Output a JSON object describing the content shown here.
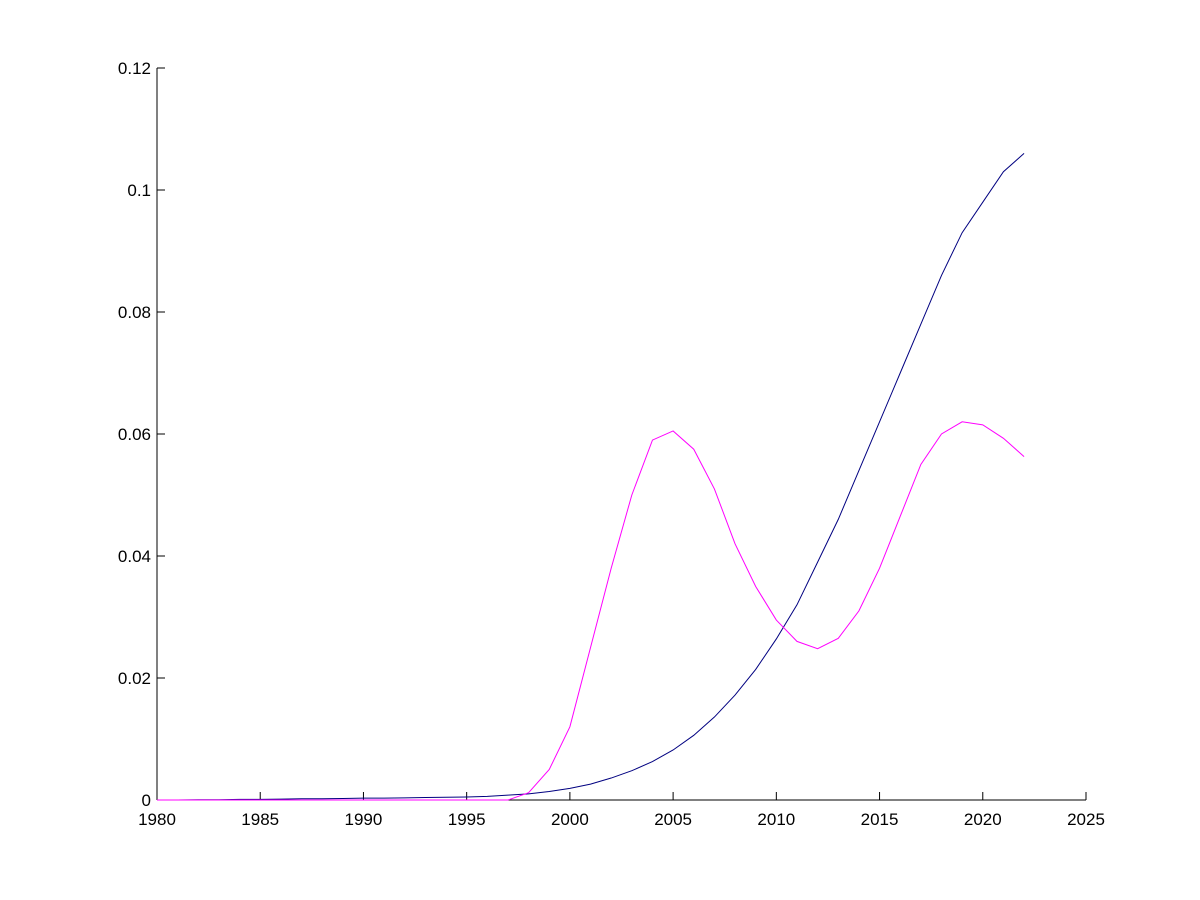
{
  "chart_data": {
    "type": "line",
    "x": [
      1980,
      1981,
      1982,
      1983,
      1984,
      1985,
      1986,
      1987,
      1988,
      1989,
      1990,
      1991,
      1992,
      1993,
      1994,
      1995,
      1996,
      1997,
      1998,
      1999,
      2000,
      2001,
      2002,
      2003,
      2004,
      2005,
      2006,
      2007,
      2008,
      2009,
      2010,
      2011,
      2012,
      2013,
      2014,
      2015,
      2016,
      2017,
      2018,
      2019,
      2020,
      2021,
      2022
    ],
    "series": [
      {
        "color": "#000080",
        "values": [
          0,
          0,
          5e-05,
          5e-05,
          0.0001,
          0.0001,
          0.00015,
          0.0002,
          0.0002,
          0.00025,
          0.0003,
          0.0003,
          0.00035,
          0.0004,
          0.00045,
          0.0005,
          0.0006,
          0.0008,
          0.001,
          0.0014,
          0.0019,
          0.0026,
          0.0036,
          0.0048,
          0.0063,
          0.0082,
          0.0106,
          0.0136,
          0.0172,
          0.0214,
          0.0264,
          0.032,
          0.039,
          0.046,
          0.054,
          0.062,
          0.07,
          0.078,
          0.086,
          0.093,
          0.098,
          0.103,
          0.106
        ]
      },
      {
        "color": "#ff00ff",
        "values": [
          0,
          0,
          0,
          0,
          0,
          0,
          0,
          0,
          0,
          0,
          0,
          0,
          0,
          0,
          0,
          0,
          0,
          0,
          0.0012,
          0.005,
          0.012,
          0.025,
          0.038,
          0.05,
          0.059,
          0.0605,
          0.0575,
          0.051,
          0.042,
          0.035,
          0.0295,
          0.026,
          0.0248,
          0.0265,
          0.031,
          0.038,
          0.0465,
          0.055,
          0.06,
          0.062,
          0.0615,
          0.0593,
          0.0563
        ]
      }
    ],
    "xlim": [
      1980,
      2025
    ],
    "xticks": [
      1980,
      1985,
      1990,
      1995,
      2000,
      2005,
      2010,
      2015,
      2020,
      2025
    ],
    "ylim": [
      0,
      0.12
    ],
    "yticks": [
      0,
      0.02,
      0.04,
      0.06,
      0.08,
      0.1,
      0.12
    ]
  }
}
